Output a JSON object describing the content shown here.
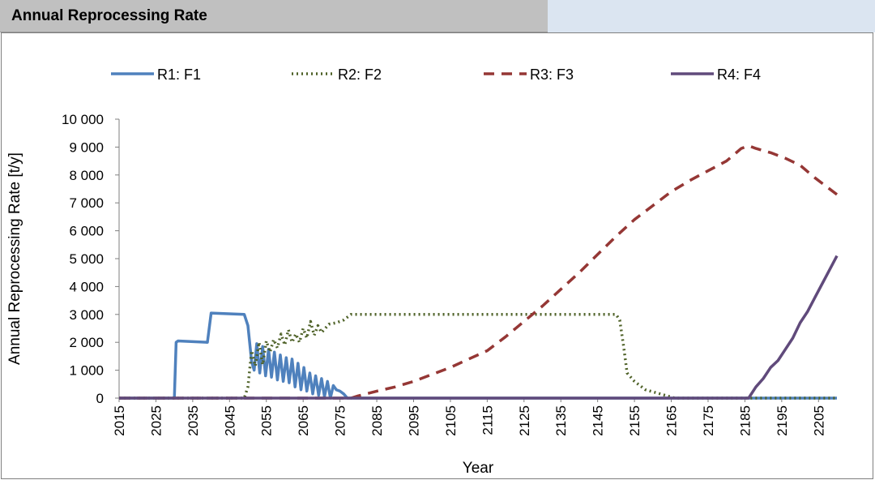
{
  "page": {
    "title": "Annual Reprocessing Rate"
  },
  "chart_data": {
    "type": "line",
    "title": "",
    "xlabel": "Year",
    "ylabel": "Annual Reprocessing Rate [t/y]",
    "xlim": [
      2015,
      2210
    ],
    "ylim": [
      0,
      10000
    ],
    "xticks": [
      2015,
      2025,
      2035,
      2045,
      2055,
      2065,
      2075,
      2085,
      2095,
      2105,
      2115,
      2125,
      2135,
      2145,
      2155,
      2165,
      2175,
      2185,
      2195,
      2205
    ],
    "yticks": [
      0,
      1000,
      2000,
      3000,
      4000,
      5000,
      6000,
      7000,
      8000,
      9000,
      10000
    ],
    "ytick_labels": [
      "0",
      "1 000",
      "2 000",
      "3 000",
      "4 000",
      "5 000",
      "6 000",
      "7 000",
      "8 000",
      "9 000",
      "10 000"
    ],
    "grid": false,
    "legend_position": "top",
    "series": [
      {
        "name": "R1: F1",
        "color": "#4f81bd",
        "style": "solid",
        "points": [
          [
            2015,
            0
          ],
          [
            2030,
            0
          ],
          [
            2030.5,
            2000
          ],
          [
            2031,
            2050
          ],
          [
            2039,
            2000
          ],
          [
            2040,
            3050
          ],
          [
            2049,
            3000
          ],
          [
            2050,
            2600
          ],
          [
            2051,
            1300
          ],
          [
            2051.7,
            1000
          ],
          [
            2052.4,
            1950
          ],
          [
            2053.2,
            900
          ],
          [
            2054,
            1850
          ],
          [
            2054.8,
            800
          ],
          [
            2055.6,
            1750
          ],
          [
            2056.4,
            750
          ],
          [
            2057.2,
            1650
          ],
          [
            2058,
            650
          ],
          [
            2058.8,
            1550
          ],
          [
            2059.6,
            600
          ],
          [
            2060.4,
            1450
          ],
          [
            2061.2,
            550
          ],
          [
            2062,
            1400
          ],
          [
            2062.8,
            400
          ],
          [
            2063.6,
            1250
          ],
          [
            2064.4,
            300
          ],
          [
            2065.2,
            1100
          ],
          [
            2066,
            250
          ],
          [
            2066.8,
            900
          ],
          [
            2067.6,
            150
          ],
          [
            2068.4,
            800
          ],
          [
            2069.2,
            100
          ],
          [
            2070,
            700
          ],
          [
            2070.8,
            50
          ],
          [
            2071.6,
            600
          ],
          [
            2072.4,
            0
          ],
          [
            2073.2,
            450
          ],
          [
            2074,
            300
          ],
          [
            2075,
            250
          ],
          [
            2076,
            150
          ],
          [
            2077,
            0
          ],
          [
            2210,
            0
          ]
        ]
      },
      {
        "name": "R2: F2",
        "color": "#4f6228",
        "style": "dotted",
        "points": [
          [
            2015,
            0
          ],
          [
            2049,
            0
          ],
          [
            2050,
            400
          ],
          [
            2051,
            1700
          ],
          [
            2052,
            1150
          ],
          [
            2053,
            2000
          ],
          [
            2054,
            1200
          ],
          [
            2055,
            2050
          ],
          [
            2056,
            1650
          ],
          [
            2057,
            2100
          ],
          [
            2058,
            1800
          ],
          [
            2059,
            2300
          ],
          [
            2060,
            1900
          ],
          [
            2061,
            2450
          ],
          [
            2062,
            2000
          ],
          [
            2063,
            2300
          ],
          [
            2064,
            2000
          ],
          [
            2065,
            2500
          ],
          [
            2066,
            2150
          ],
          [
            2067,
            2750
          ],
          [
            2068,
            2250
          ],
          [
            2069,
            2600
          ],
          [
            2070,
            2350
          ],
          [
            2072,
            2650
          ],
          [
            2074,
            2700
          ],
          [
            2076,
            2800
          ],
          [
            2078,
            3000
          ],
          [
            2150,
            3000
          ],
          [
            2151,
            2800
          ],
          [
            2152,
            1900
          ],
          [
            2153,
            900
          ],
          [
            2155,
            600
          ],
          [
            2158,
            300
          ],
          [
            2162,
            150
          ],
          [
            2166,
            0
          ],
          [
            2210,
            0
          ]
        ]
      },
      {
        "name": "R3: F3",
        "color": "#953735",
        "style": "dashed",
        "points": [
          [
            2015,
            0
          ],
          [
            2078,
            0
          ],
          [
            2080,
            80
          ],
          [
            2085,
            250
          ],
          [
            2090,
            400
          ],
          [
            2095,
            600
          ],
          [
            2100,
            850
          ],
          [
            2105,
            1100
          ],
          [
            2110,
            1400
          ],
          [
            2115,
            1700
          ],
          [
            2120,
            2200
          ],
          [
            2125,
            2750
          ],
          [
            2130,
            3300
          ],
          [
            2135,
            3900
          ],
          [
            2140,
            4500
          ],
          [
            2145,
            5150
          ],
          [
            2150,
            5800
          ],
          [
            2155,
            6400
          ],
          [
            2160,
            6900
          ],
          [
            2165,
            7400
          ],
          [
            2170,
            7800
          ],
          [
            2175,
            8150
          ],
          [
            2180,
            8500
          ],
          [
            2184,
            8950
          ],
          [
            2186,
            9050
          ],
          [
            2188,
            8950
          ],
          [
            2192,
            8800
          ],
          [
            2196,
            8600
          ],
          [
            2200,
            8350
          ],
          [
            2204,
            7900
          ],
          [
            2207,
            7600
          ],
          [
            2210,
            7300
          ]
        ]
      },
      {
        "name": "R4: F4",
        "color": "#604a7b",
        "style": "solid",
        "points": [
          [
            2015,
            0
          ],
          [
            2186,
            0
          ],
          [
            2188,
            400
          ],
          [
            2190,
            700
          ],
          [
            2192,
            1100
          ],
          [
            2194,
            1350
          ],
          [
            2196,
            1750
          ],
          [
            2198,
            2150
          ],
          [
            2200,
            2700
          ],
          [
            2202,
            3100
          ],
          [
            2204,
            3600
          ],
          [
            2206,
            4100
          ],
          [
            2208,
            4600
          ],
          [
            2210,
            5100
          ]
        ]
      }
    ]
  }
}
